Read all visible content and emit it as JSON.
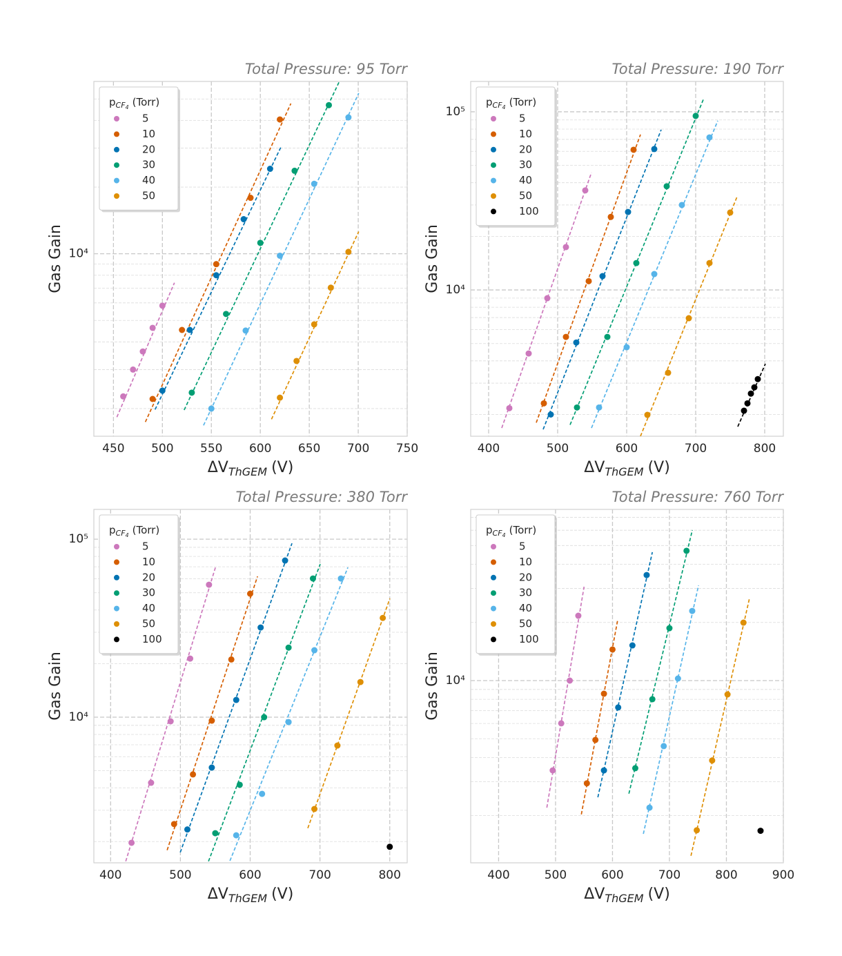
{
  "chart_data": [
    {
      "type": "scatter",
      "title": "Total Pressure: 95 Torr",
      "xlabel": [
        "ΔV",
        "ThGEM",
        "(V)"
      ],
      "ylabel": "Gas Gain",
      "log_y": true,
      "grid": true,
      "legend": "upper left",
      "legend_title": [
        "p",
        "CF",
        "4",
        "(Torr)"
      ],
      "xlim": [
        430,
        750
      ],
      "ylim": [
        1500,
        60000
      ],
      "xticks": [
        450,
        500,
        550,
        600,
        650,
        700,
        750
      ],
      "yticks": [
        {
          "value": 10000,
          "label": "10⁴"
        }
      ],
      "yminorticks": [
        2000,
        3000,
        4000,
        5000,
        6000,
        7000,
        8000,
        9000,
        20000,
        30000,
        40000,
        50000
      ],
      "series": [
        {
          "name": "5",
          "color": "#cc78bc",
          "x": [
            460,
            470,
            480,
            490,
            500
          ],
          "values": [
            2270,
            3000,
            3620,
            4630,
            5830
          ],
          "fit_x": [
            453.5,
            512.3
          ],
          "fit_y": [
            1830,
            7400
          ]
        },
        {
          "name": "10",
          "color": "#d55e00",
          "x": [
            490,
            520,
            555,
            590,
            620
          ],
          "values": [
            2210,
            4530,
            8980,
            17900,
            40400
          ],
          "fit_x": [
            482.6,
            631.2
          ],
          "fit_y": [
            1740,
            47700
          ]
        },
        {
          "name": "20",
          "color": "#0173b2",
          "x": [
            500,
            528,
            555,
            583,
            610
          ],
          "values": [
            2410,
            4530,
            8000,
            14330,
            24200
          ],
          "fit_x": [
            492.5,
            621.3
          ],
          "fit_y": [
            1980,
            30500
          ]
        },
        {
          "name": "30",
          "color": "#029e73",
          "x": [
            530,
            565,
            600,
            635,
            670
          ],
          "values": [
            2360,
            5350,
            11200,
            23700,
            46900
          ],
          "fit_x": [
            522.2,
            680.7
          ],
          "fit_y": [
            1970,
            60000
          ]
        },
        {
          "name": "40",
          "color": "#56b4e9",
          "x": [
            550,
            585,
            620,
            655,
            690
          ],
          "values": [
            2000,
            4500,
            9800,
            20700,
            41300
          ],
          "fit_x": [
            542.0,
            700.5
          ],
          "fit_y": [
            1680,
            53100
          ]
        },
        {
          "name": "50",
          "color": "#de8f05",
          "x": [
            620,
            637,
            655,
            672,
            690
          ],
          "values": [
            2240,
            3280,
            4800,
            7030,
            10200
          ],
          "fit_x": [
            611.4,
            700.5
          ],
          "fit_y": [
            1790,
            12600
          ]
        }
      ]
    },
    {
      "type": "scatter",
      "title": "Total Pressure: 190 Torr",
      "xlabel": [
        "ΔV",
        "ThGEM",
        "(V)"
      ],
      "ylabel": "Gas Gain",
      "log_y": true,
      "grid": true,
      "legend": "upper left",
      "legend_title": [
        "p",
        "CF",
        "4",
        "(Torr)"
      ],
      "xlim": [
        374,
        827
      ],
      "ylim": [
        1510,
        148000
      ],
      "xticks": [
        400,
        500,
        600,
        700,
        800
      ],
      "yticks": [
        {
          "value": 10000,
          "label": "10⁴"
        },
        {
          "value": 100000,
          "label": "10⁵"
        }
      ],
      "yminorticks": [
        2000,
        3000,
        4000,
        5000,
        6000,
        7000,
        8000,
        9000,
        20000,
        30000,
        40000,
        50000,
        60000,
        70000,
        80000,
        90000
      ],
      "series": [
        {
          "name": "5",
          "color": "#cc78bc",
          "x": [
            430,
            458,
            485,
            512,
            540
          ],
          "values": [
            2170,
            4400,
            8990,
            17400,
            36200
          ],
          "fit_x": [
            419,
            549
          ],
          "fit_y": [
            1680,
            45600
          ]
        },
        {
          "name": "10",
          "color": "#d55e00",
          "x": [
            480,
            512,
            545,
            577,
            610
          ],
          "values": [
            2310,
            5450,
            11200,
            25700,
            61200
          ],
          "fit_x": [
            469,
            620
          ],
          "fit_y": [
            1800,
            74500
          ]
        },
        {
          "name": "20",
          "color": "#0173b2",
          "x": [
            490,
            527,
            565,
            602,
            640
          ],
          "values": [
            2000,
            5070,
            11960,
            27400,
            61800
          ],
          "fit_x": [
            479,
            650
          ],
          "fit_y": [
            1650,
            79300
          ]
        },
        {
          "name": "30",
          "color": "#029e73",
          "x": [
            528,
            572,
            614,
            658,
            700
          ],
          "values": [
            2190,
            5450,
            14160,
            38200,
            94800
          ],
          "fit_x": [
            518,
            712
          ],
          "fit_y": [
            1750,
            119600
          ]
        },
        {
          "name": "40",
          "color": "#56b4e9",
          "x": [
            560,
            600,
            640,
            680,
            720
          ],
          "values": [
            2190,
            4770,
            12280,
            29990,
            71800
          ],
          "fit_x": [
            549,
            732
          ],
          "fit_y": [
            1680,
            89100
          ]
        },
        {
          "name": "50",
          "color": "#de8f05",
          "x": [
            630,
            660,
            690,
            720,
            750
          ],
          "values": [
            1990,
            3430,
            6940,
            14160,
            27200
          ],
          "fit_x": [
            620,
            760
          ],
          "fit_y": [
            1510,
            33400
          ]
        },
        {
          "name": "100",
          "color": "#000000",
          "x": [
            770,
            775,
            780,
            785,
            790
          ],
          "values": [
            2100,
            2310,
            2620,
            2840,
            3160
          ],
          "fit_x": [
            761,
            801
          ],
          "fit_y": [
            1710,
            3850
          ]
        }
      ]
    },
    {
      "type": "scatter",
      "title": "Total Pressure: 380 Torr",
      "xlabel": [
        "ΔV",
        "ThGEM",
        "(V)"
      ],
      "ylabel": "Gas Gain",
      "log_y": true,
      "grid": true,
      "legend": "upper left",
      "legend_title": [
        "p",
        "CF",
        "4",
        "(Torr)"
      ],
      "xlim": [
        376,
        825
      ],
      "ylim": [
        1520,
        147000
      ],
      "xticks": [
        400,
        500,
        600,
        700,
        800
      ],
      "yticks": [
        {
          "value": 10000,
          "label": "10⁴"
        },
        {
          "value": 100000,
          "label": "10⁵"
        }
      ],
      "yminorticks": [
        2000,
        3000,
        4000,
        5000,
        6000,
        7000,
        8000,
        9000,
        20000,
        30000,
        40000,
        50000,
        60000,
        70000,
        80000,
        90000
      ],
      "series": [
        {
          "name": "5",
          "color": "#cc78bc",
          "x": [
            430,
            458,
            486,
            514,
            541
          ],
          "values": [
            1970,
            4280,
            9480,
            21350,
            55500
          ],
          "fit_x": [
            421.7,
            550.2
          ],
          "fit_y": [
            1550,
            69400
          ]
        },
        {
          "name": "10",
          "color": "#d55e00",
          "x": [
            491,
            518,
            545,
            573,
            600
          ],
          "values": [
            2510,
            4770,
            9560,
            21100,
            49400
          ],
          "fit_x": [
            481,
            610.5
          ],
          "fit_y": [
            1790,
            61800
          ]
        },
        {
          "name": "20",
          "color": "#0173b2",
          "x": [
            510,
            545,
            580,
            615,
            650
          ],
          "values": [
            2340,
            5210,
            12500,
            31900,
            75900
          ],
          "fit_x": [
            499.8,
            659.9
          ],
          "fit_y": [
            1740,
            94800
          ]
        },
        {
          "name": "30",
          "color": "#029e73",
          "x": [
            550,
            585,
            620,
            655,
            690
          ],
          "values": [
            2230,
            4170,
            10000,
            24600,
            60130
          ],
          "fit_x": [
            540.3,
            700.4
          ],
          "fit_y": [
            1550,
            72500
          ]
        },
        {
          "name": "40",
          "color": "#56b4e9",
          "x": [
            580,
            617,
            655,
            692,
            730
          ],
          "values": [
            2170,
            3710,
            9390,
            23770,
            60130
          ],
          "fit_x": [
            571,
            740
          ],
          "fit_y": [
            1560,
            69400
          ]
        },
        {
          "name": "50",
          "color": "#de8f05",
          "x": [
            692,
            725,
            758,
            790
          ],
          "values": [
            3050,
            6930,
            15760,
            36100
          ],
          "fit_x": [
            682.6,
            800.2
          ],
          "fit_y": [
            2380,
            46400
          ]
        },
        {
          "name": "100",
          "color": "#000000",
          "x": [
            800
          ],
          "values": [
            1870
          ]
        }
      ]
    },
    {
      "type": "scatter",
      "title": "Total Pressure: 760 Torr",
      "xlabel": [
        "ΔV",
        "ThGEM",
        "(V)"
      ],
      "ylabel": "Gas Gain",
      "log_y": true,
      "grid": true,
      "legend": "upper left",
      "legend_title": [
        "p",
        "CF",
        "4",
        "(Torr)"
      ],
      "xlim": [
        351,
        900
      ],
      "ylim": [
        1140,
        76900
      ],
      "xticks": [
        400,
        500,
        600,
        700,
        800,
        900
      ],
      "yticks": [
        {
          "value": 10000,
          "label": "10⁴"
        }
      ],
      "yminorticks": [
        2000,
        3000,
        4000,
        5000,
        6000,
        7000,
        8000,
        9000,
        20000,
        30000,
        40000,
        50000,
        60000,
        70000
      ],
      "series": [
        {
          "name": "5",
          "color": "#cc78bc",
          "x": [
            495,
            510,
            525,
            540
          ],
          "values": [
            3430,
            6010,
            10000,
            21660
          ],
          "fit_x": [
            484.7,
            550.1
          ],
          "fit_y": [
            2200,
            30600
          ]
        },
        {
          "name": "10",
          "color": "#d55e00",
          "x": [
            555,
            570,
            585,
            600
          ],
          "values": [
            2940,
            4930,
            8550,
            14480
          ],
          "fit_x": [
            545.3,
            609.4
          ],
          "fit_y": [
            2030,
            20800
          ]
        },
        {
          "name": "20",
          "color": "#0173b2",
          "x": [
            585,
            610,
            635,
            660
          ],
          "values": [
            3430,
            7260,
            15210,
            35170
          ],
          "fit_x": [
            574.3,
            670
          ],
          "fit_y": [
            2490,
            46200
          ]
        },
        {
          "name": "30",
          "color": "#029e73",
          "x": [
            640,
            670,
            700,
            730
          ],
          "values": [
            3520,
            8010,
            18680,
            46950
          ],
          "fit_x": [
            628.8,
            740.2
          ],
          "fit_y": [
            2600,
            60100
          ]
        },
        {
          "name": "40",
          "color": "#56b4e9",
          "x": [
            665,
            690,
            715,
            740
          ],
          "values": [
            2200,
            4580,
            10250,
            22930
          ],
          "fit_x": [
            654.2,
            751.1
          ],
          "fit_y": [
            1610,
            31100
          ]
        },
        {
          "name": "50",
          "color": "#de8f05",
          "x": [
            748,
            775,
            802,
            830
          ],
          "values": [
            1680,
            3860,
            8480,
            19950
          ],
          "fit_x": [
            737.8,
            840.7
          ],
          "fit_y": [
            1240,
            26800
          ]
        },
        {
          "name": "100",
          "color": "#000000",
          "x": [
            860
          ],
          "values": [
            1670
          ]
        }
      ]
    }
  ]
}
